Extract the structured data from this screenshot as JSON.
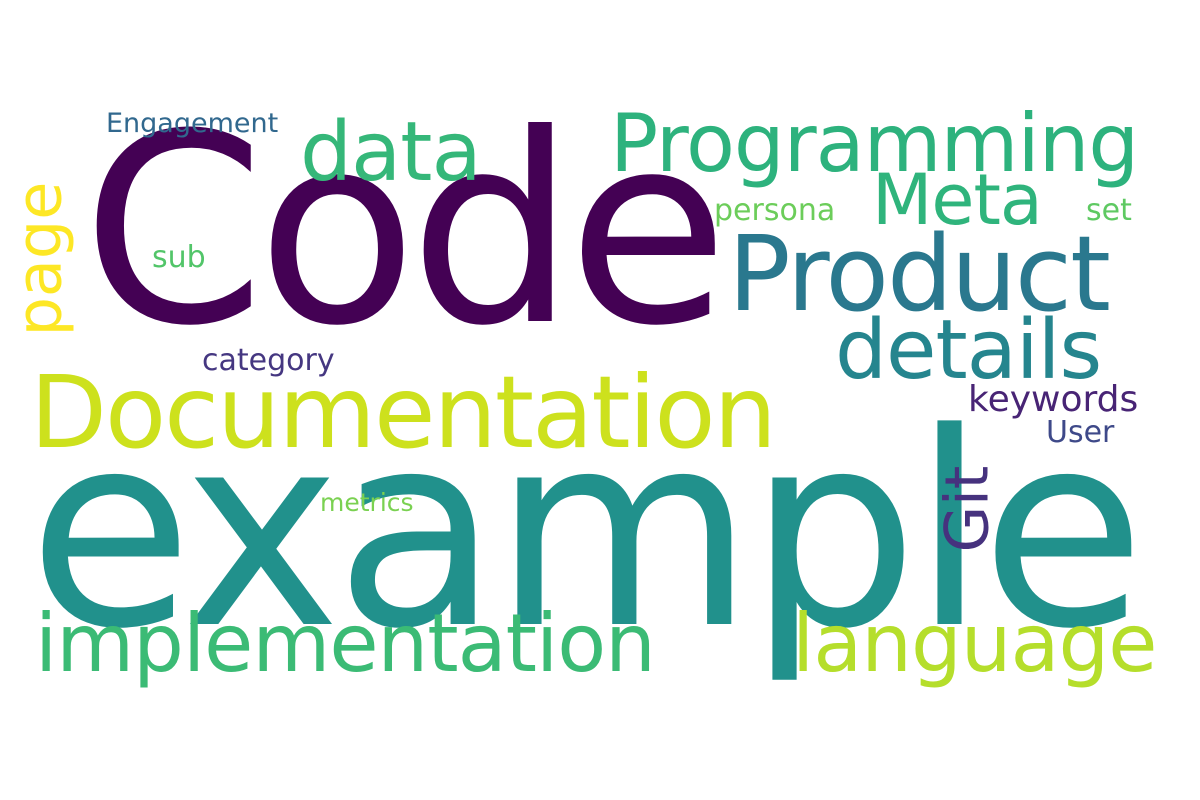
{
  "words": {
    "example": {
      "text": "example",
      "color": "#21918c"
    },
    "code": {
      "text": "Code",
      "color": "#440154"
    },
    "documentation": {
      "text": "Documentation",
      "color": "#cde11d"
    },
    "product": {
      "text": "Product",
      "color": "#2a788e"
    },
    "programming": {
      "text": "Programming",
      "color": "#2db27d"
    },
    "implementation": {
      "text": "implementation",
      "color": "#3bbb75"
    },
    "language": {
      "text": "language",
      "color": "#b5de2b"
    },
    "details": {
      "text": "details",
      "color": "#25858e"
    },
    "data": {
      "text": "data",
      "color": "#35b779"
    },
    "meta": {
      "text": "Meta",
      "color": "#2fb47c"
    },
    "page": {
      "text": "page",
      "color": "#fde725"
    },
    "git": {
      "text": "Git",
      "color": "#46327e"
    },
    "keywords": {
      "text": "keywords",
      "color": "#482475"
    },
    "category": {
      "text": "category",
      "color": "#453781"
    },
    "engagement": {
      "text": "Engagement",
      "color": "#31688e"
    },
    "persona": {
      "text": "persona",
      "color": "#6ccd5a"
    },
    "set": {
      "text": "set",
      "color": "#5ec962"
    },
    "sub": {
      "text": "sub",
      "color": "#52c569"
    },
    "user": {
      "text": "User",
      "color": "#3e4989"
    },
    "metrics": {
      "text": "metrics",
      "color": "#7ad151"
    }
  }
}
